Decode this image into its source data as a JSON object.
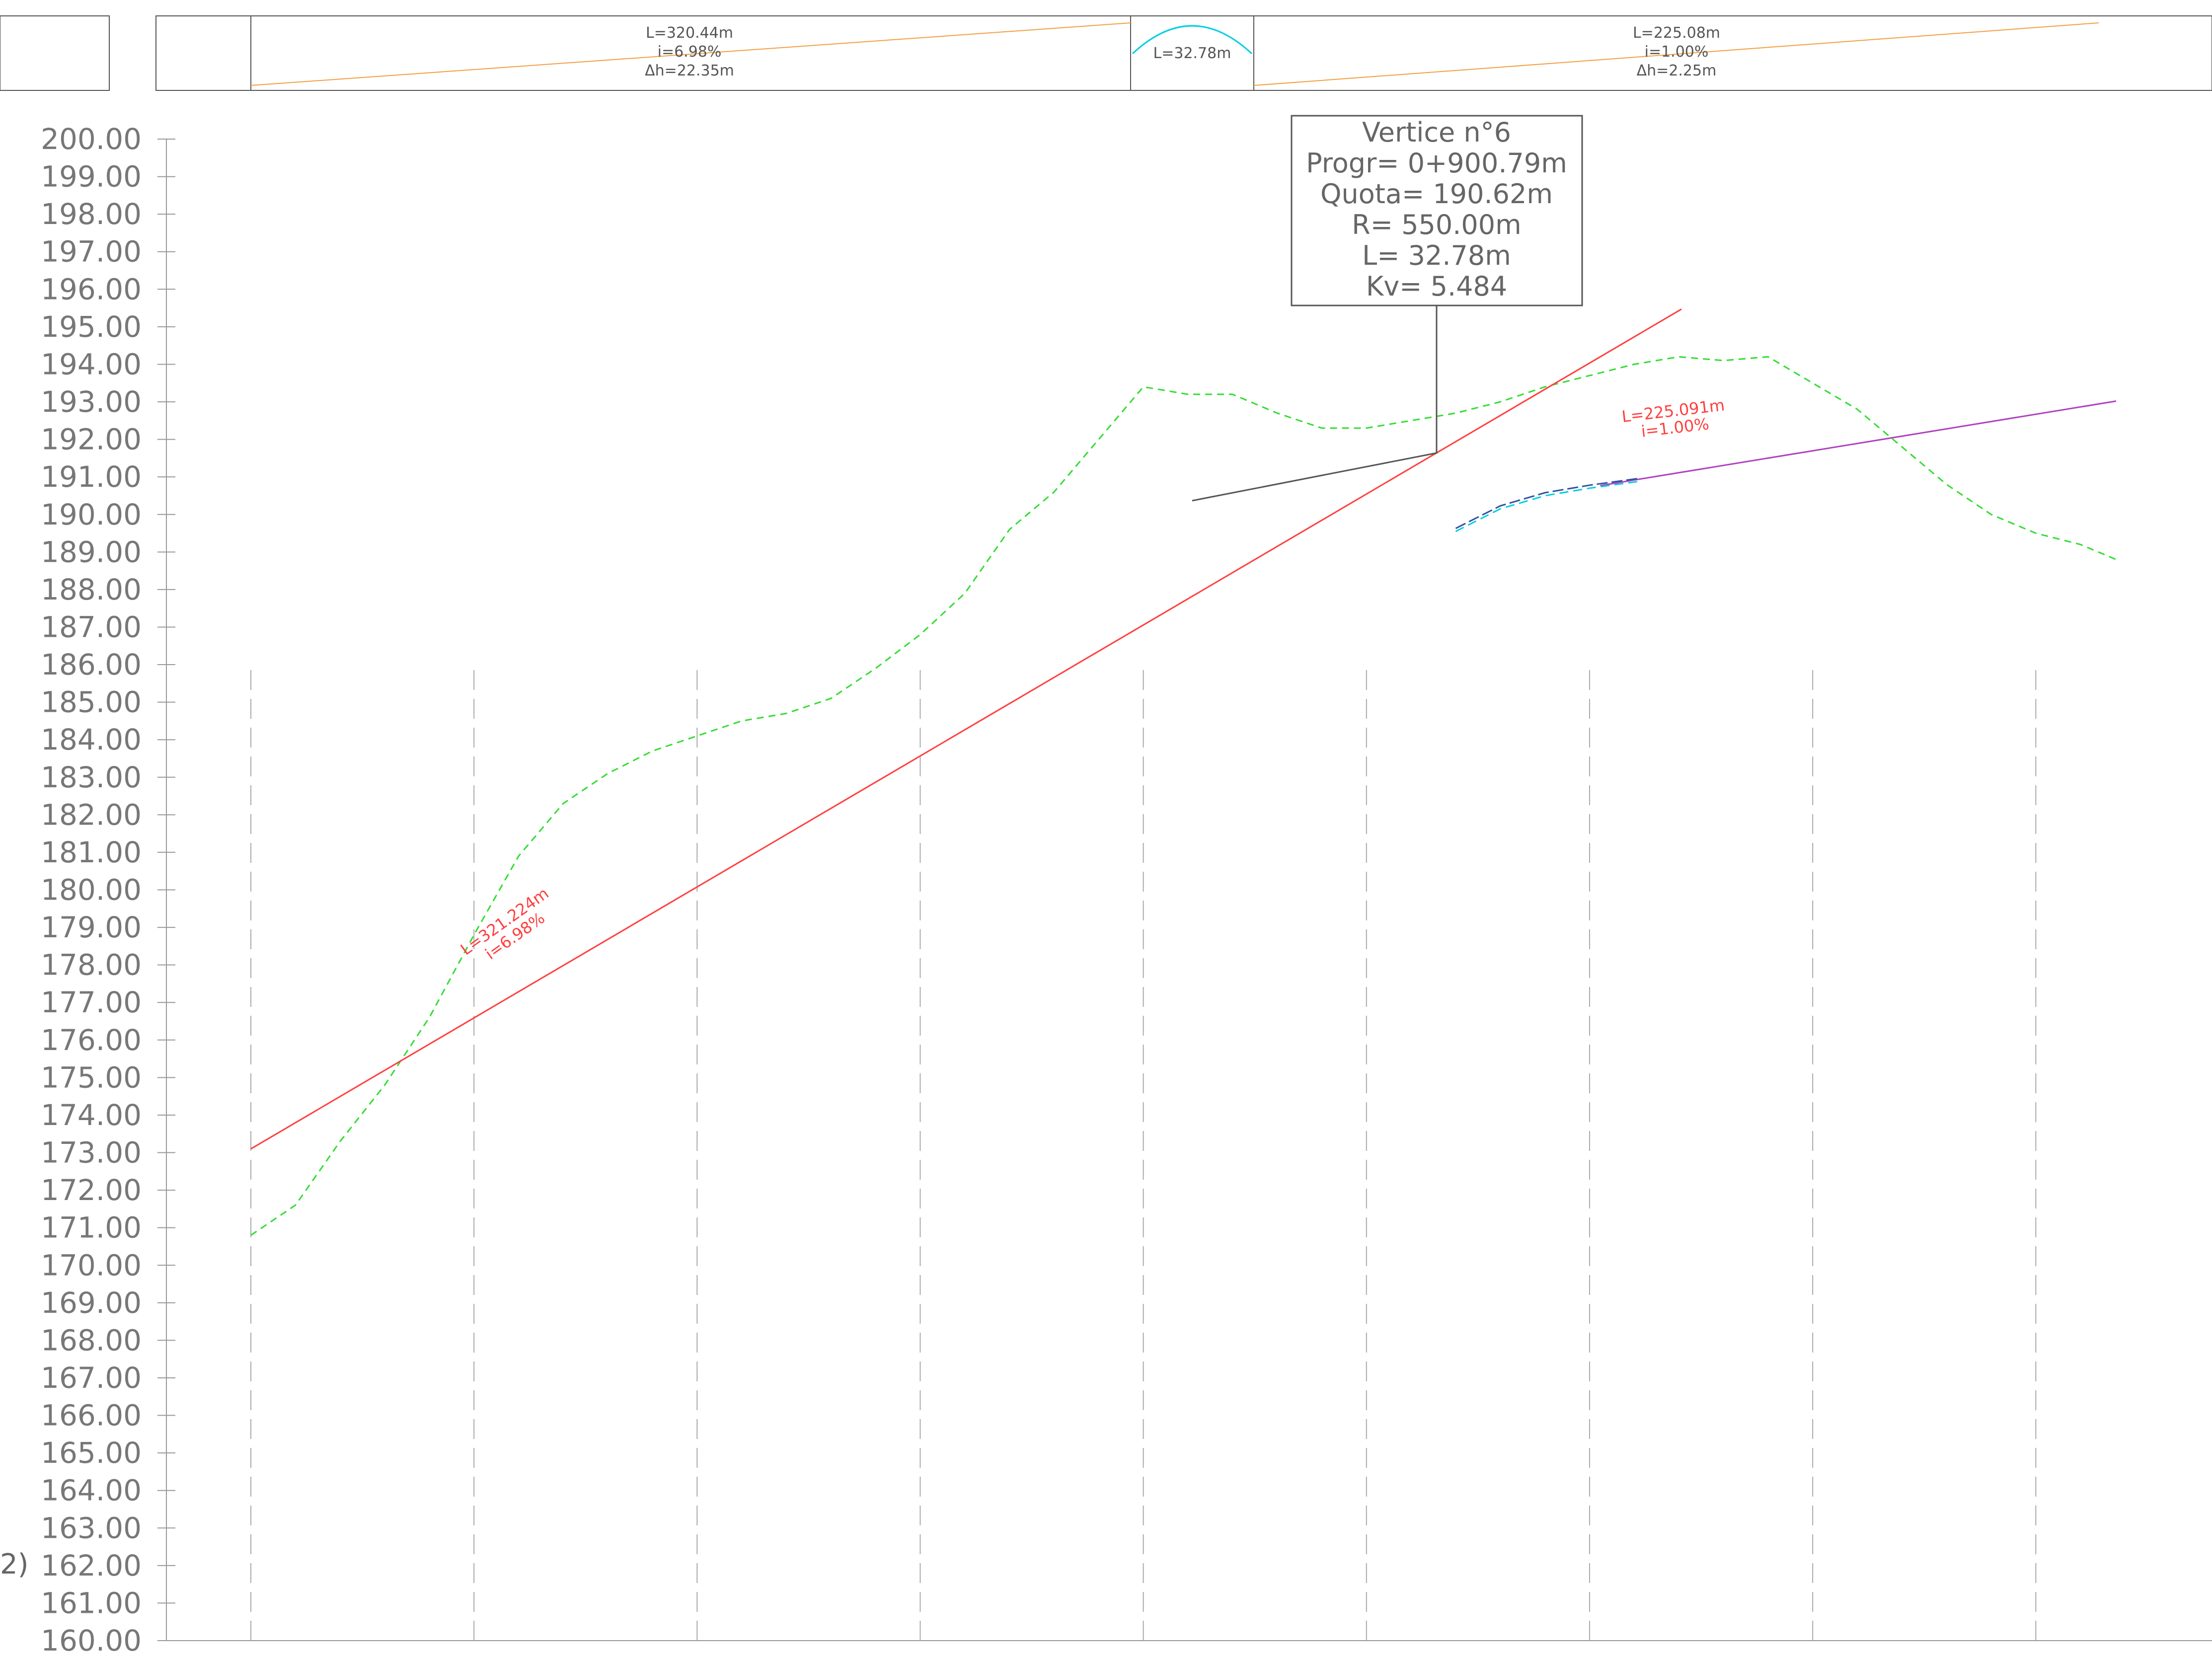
{
  "band": {
    "seg1": {
      "length": "L=320.44m",
      "slope": "i=6.98%",
      "dh": "Δh=22.35m"
    },
    "curve": {
      "length": "L=32.78m"
    },
    "seg2": {
      "length": "L=225.08m",
      "slope": "i=1.00%",
      "dh": "Δh=2.25m"
    }
  },
  "callout": {
    "title": "Vertice n°6",
    "progr": "Progr= 0+900.79m",
    "quota": "Quota= 190.62m",
    "radius": "R= 550.00m",
    "length": "L= 32.78m",
    "kv": "Kv= 5.484"
  },
  "grade_labels": {
    "seg1": {
      "length": "L=321.224m",
      "slope": "i=6.98%"
    },
    "seg2": {
      "length": "L=225.091m",
      "slope": "i=1.00%"
    }
  },
  "left_fragment": "2)",
  "colors": {
    "ground": "#33dd33",
    "grade1": "#ff4040",
    "grade2": "#b040c0",
    "curve": "#00cfe0",
    "curve_alt": "#3050a0",
    "band_line": "#f2a040",
    "text_grade": "#ff4040",
    "axis": "#999999",
    "grid": "#aaaaaa"
  },
  "chart_data": {
    "type": "line",
    "title": "",
    "ylim": [
      160,
      200
    ],
    "y_ticks": [
      "200.00",
      "199.00",
      "198.00",
      "197.00",
      "196.00",
      "195.00",
      "194.00",
      "193.00",
      "192.00",
      "191.00",
      "190.00",
      "189.00",
      "188.00",
      "187.00",
      "186.00",
      "185.00",
      "184.00",
      "183.00",
      "182.00",
      "181.00",
      "180.00",
      "179.00",
      "178.00",
      "177.00",
      "176.00",
      "175.00",
      "174.00",
      "173.00",
      "172.00",
      "171.00",
      "170.00",
      "169.00",
      "168.00",
      "167.00",
      "166.00",
      "165.00",
      "164.00",
      "163.00",
      "162.00",
      "161.00",
      "160.00"
    ],
    "y_tick_values": [
      200,
      199,
      198,
      197,
      196,
      195,
      194,
      193,
      192,
      191,
      190,
      189,
      188,
      187,
      186,
      185,
      184,
      183,
      182,
      181,
      180,
      179,
      178,
      177,
      176,
      175,
      174,
      173,
      172,
      171,
      170,
      169,
      168,
      167,
      166,
      165,
      164,
      163,
      162,
      161,
      160
    ],
    "xlim": [
      582,
      1000
    ],
    "grid": true,
    "series": [
      {
        "x": [
          582,
          592,
          602,
          612,
          622,
          632,
          642,
          652,
          662,
          672,
          682,
          692,
          702,
          712,
          722,
          732,
          742,
          752,
          762,
          772,
          782,
          792,
          802,
          812,
          822,
          832,
          842,
          852,
          862,
          872,
          882,
          892,
          902,
          912,
          922,
          932,
          942,
          952,
          962,
          972,
          982,
          992,
          1000
        ],
        "values": [
          170.8,
          171.6,
          173.3,
          174.8,
          176.6,
          178.8,
          180.9,
          182.3,
          183.1,
          183.7,
          184.1,
          184.5,
          184.7,
          185.1,
          185.9,
          186.8,
          187.9,
          189.6,
          190.6,
          192.0,
          193.4,
          193.2,
          193.2,
          192.7,
          192.3,
          192.3,
          192.5,
          192.7,
          193.0,
          193.4,
          193.7,
          194.0,
          194.2,
          194.1,
          194.2,
          193.5,
          192.8,
          191.8,
          190.8,
          190.0,
          189.5,
          189.2,
          188.8
        ]
      },
      {
        "x": [
          582,
          902.58
        ],
        "values": [
          173.1,
          195.47
        ]
      },
      {
        "x": [
          884.4,
          1000
        ],
        "values": [
          190.77,
          193.02
        ]
      },
      {
        "x": [
          852.0,
          862.0,
          872.0,
          882.0,
          893.0
        ],
        "values": [
          189.55,
          190.15,
          190.5,
          190.7,
          190.88
        ]
      }
    ],
    "vertical_lines_x": [
      582,
      632,
      682,
      732,
      782,
      832,
      882,
      932,
      982
    ]
  }
}
